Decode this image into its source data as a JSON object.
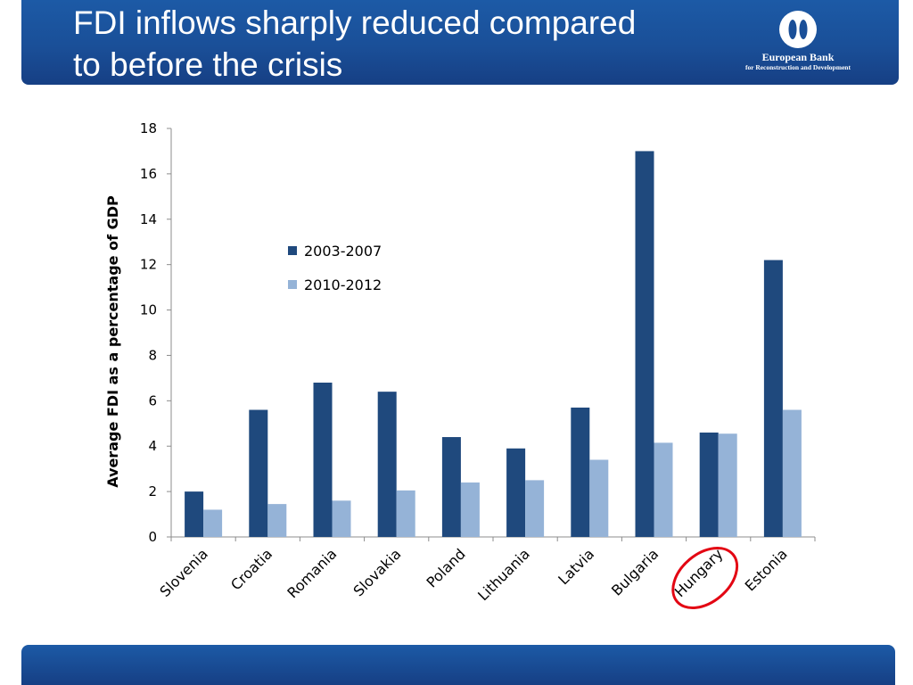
{
  "slide": {
    "title_line1": "FDI inflows sharply reduced compared",
    "title_line2": "to before the crisis",
    "logo_name": "European Bank",
    "logo_sub": "for Reconstruction and Development",
    "logo_icon": "ebrd-logo-icon"
  },
  "chart_data": {
    "type": "bar",
    "title": "",
    "xlabel": "",
    "ylabel": "Average FDI as a percentage of GDP",
    "ylim": [
      0,
      18
    ],
    "yticks": [
      "0",
      "2",
      "4",
      "6",
      "8",
      "10",
      "12",
      "14",
      "16",
      "18"
    ],
    "categories": [
      "Slovenia",
      "Croatia",
      "Romania",
      "Slovakia",
      "Poland",
      "Lithuania",
      "Latvia",
      "Bulgaria",
      "Hungary",
      "Estonia"
    ],
    "series": [
      {
        "name": "2003-2007",
        "color": "#1f497d",
        "values": [
          2.0,
          5.6,
          6.8,
          6.4,
          4.4,
          3.9,
          5.7,
          17.0,
          4.6,
          12.2
        ]
      },
      {
        "name": "2010-2012",
        "color": "#95b3d7",
        "values": [
          1.2,
          1.45,
          1.6,
          2.05,
          2.4,
          2.5,
          3.4,
          4.15,
          4.55,
          5.6
        ]
      }
    ],
    "legend_position": "upper-left",
    "grid": false,
    "highlighted_category": "Hungary",
    "highlight_color": "#e30613"
  }
}
